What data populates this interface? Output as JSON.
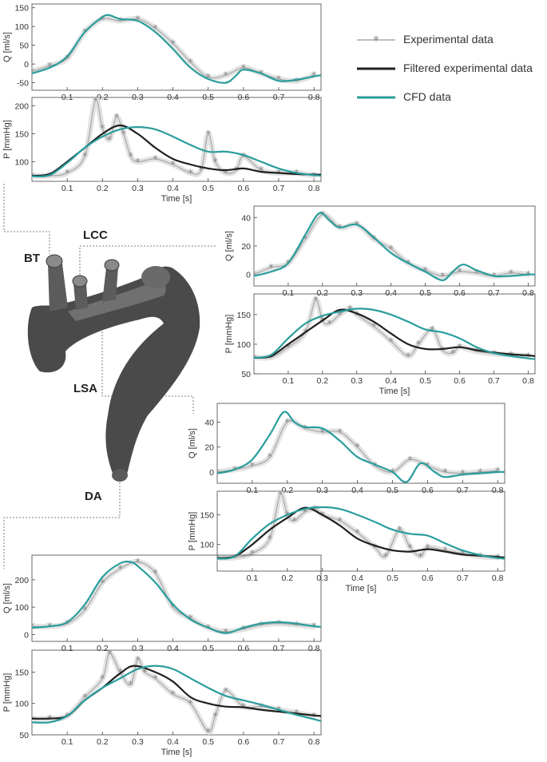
{
  "legend": {
    "experimental": "Experimental data",
    "filtered": "Filtered experimental data",
    "cfd": "CFD data"
  },
  "colors": {
    "experimental": "#a8a8a8",
    "experimental_band": "#e3e3e3",
    "filtered": "#1f1f1f",
    "cfd": "#2a9d9d",
    "axis": "#444444",
    "geometry": "#4a4a4a"
  },
  "vessels": {
    "bt": "BT",
    "lcc": "LCC",
    "lsa": "LSA",
    "da": "DA"
  },
  "chart_data": [
    {
      "id": "Q-ascending",
      "type": "line",
      "ylabel": "Q [ml/s]",
      "xlabel": "",
      "xlim": [
        0,
        0.82
      ],
      "ylim": [
        -70,
        160
      ],
      "xticks": [
        0.1,
        0.2,
        0.3,
        0.4,
        0.5,
        0.6,
        0.7,
        0.8
      ],
      "yticks": [
        -50,
        0,
        50,
        100,
        150
      ],
      "series": [
        {
          "kind": "experimental",
          "x": [
            0,
            0.05,
            0.1,
            0.15,
            0.2,
            0.25,
            0.3,
            0.35,
            0.4,
            0.45,
            0.5,
            0.55,
            0.6,
            0.65,
            0.7,
            0.75,
            0.8
          ],
          "y": [
            -20,
            -5,
            15,
            85,
            120,
            115,
            120,
            95,
            55,
            5,
            -35,
            -30,
            -10,
            -25,
            -40,
            -45,
            -30
          ]
        },
        {
          "kind": "cfd",
          "x": [
            0,
            0.05,
            0.1,
            0.15,
            0.2,
            0.22,
            0.25,
            0.3,
            0.35,
            0.4,
            0.45,
            0.5,
            0.55,
            0.58,
            0.6,
            0.65,
            0.7,
            0.75,
            0.8,
            0.82
          ],
          "y": [
            -25,
            -10,
            20,
            85,
            125,
            130,
            120,
            115,
            85,
            40,
            -10,
            -40,
            -50,
            -30,
            -15,
            -25,
            -45,
            -42,
            -33,
            -30
          ]
        }
      ]
    },
    {
      "id": "P-ascending",
      "type": "line",
      "ylabel": "P [mmHg]",
      "xlabel": "Time [s]",
      "xlim": [
        0,
        0.82
      ],
      "ylim": [
        65,
        215
      ],
      "xticks": [
        0.1,
        0.2,
        0.3,
        0.4,
        0.5,
        0.6,
        0.7,
        0.8
      ],
      "yticks": [
        100,
        150,
        200
      ],
      "series": [
        {
          "kind": "experimental",
          "x": [
            0,
            0.05,
            0.1,
            0.15,
            0.18,
            0.2,
            0.22,
            0.24,
            0.26,
            0.28,
            0.3,
            0.35,
            0.4,
            0.45,
            0.48,
            0.5,
            0.52,
            0.55,
            0.58,
            0.6,
            0.65,
            0.7,
            0.75,
            0.8
          ],
          "y": [
            75,
            75,
            80,
            110,
            210,
            160,
            140,
            180,
            150,
            110,
            100,
            105,
            95,
            80,
            85,
            150,
            100,
            80,
            85,
            110,
            85,
            80,
            80,
            75
          ]
        },
        {
          "kind": "filtered",
          "x": [
            0,
            0.05,
            0.1,
            0.15,
            0.2,
            0.25,
            0.3,
            0.35,
            0.4,
            0.45,
            0.5,
            0.55,
            0.6,
            0.65,
            0.7,
            0.75,
            0.8,
            0.82
          ],
          "y": [
            75,
            78,
            100,
            125,
            150,
            165,
            150,
            125,
            105,
            95,
            88,
            85,
            88,
            82,
            80,
            78,
            77,
            77
          ]
        },
        {
          "kind": "cfd",
          "x": [
            0,
            0.05,
            0.1,
            0.15,
            0.2,
            0.25,
            0.3,
            0.35,
            0.4,
            0.45,
            0.5,
            0.55,
            0.6,
            0.65,
            0.7,
            0.75,
            0.8,
            0.82
          ],
          "y": [
            74,
            76,
            98,
            125,
            145,
            158,
            162,
            158,
            145,
            130,
            118,
            118,
            112,
            100,
            88,
            80,
            76,
            75
          ]
        }
      ]
    },
    {
      "id": "Q-LCC",
      "type": "line",
      "ylabel": "Q [ml/s]",
      "xlabel": "",
      "xlim": [
        0,
        0.82
      ],
      "ylim": [
        -8,
        48
      ],
      "xticks": [
        0.1,
        0.2,
        0.3,
        0.4,
        0.5,
        0.6,
        0.7,
        0.8
      ],
      "yticks": [
        0,
        20,
        40
      ],
      "series": [
        {
          "kind": "experimental",
          "x": [
            0,
            0.05,
            0.1,
            0.15,
            0.2,
            0.25,
            0.3,
            0.35,
            0.4,
            0.45,
            0.5,
            0.55,
            0.6,
            0.65,
            0.7,
            0.75,
            0.8
          ],
          "y": [
            0,
            5,
            8,
            25,
            42,
            33,
            35,
            25,
            18,
            8,
            3,
            -1,
            2,
            1,
            -1,
            1,
            0
          ]
        },
        {
          "kind": "cfd",
          "x": [
            0,
            0.05,
            0.1,
            0.15,
            0.19,
            0.22,
            0.25,
            0.3,
            0.35,
            0.4,
            0.45,
            0.5,
            0.55,
            0.58,
            0.61,
            0.65,
            0.7,
            0.75,
            0.8,
            0.82
          ],
          "y": [
            -1,
            2,
            8,
            28,
            43,
            38,
            33,
            35,
            26,
            15,
            8,
            2,
            -4,
            2,
            7,
            3,
            -1,
            -1,
            0,
            0
          ]
        }
      ]
    },
    {
      "id": "P-LCC",
      "type": "line",
      "ylabel": "P [mmHg]",
      "xlabel": "Time [s]",
      "xlim": [
        0,
        0.82
      ],
      "ylim": [
        50,
        185
      ],
      "xticks": [
        0.1,
        0.2,
        0.3,
        0.4,
        0.5,
        0.6,
        0.7,
        0.8
      ],
      "yticks": [
        50,
        100,
        150
      ],
      "series": [
        {
          "kind": "experimental",
          "x": [
            0,
            0.05,
            0.1,
            0.15,
            0.18,
            0.2,
            0.22,
            0.25,
            0.28,
            0.3,
            0.35,
            0.4,
            0.45,
            0.48,
            0.52,
            0.55,
            0.58,
            0.6,
            0.65,
            0.7,
            0.75,
            0.8
          ],
          "y": [
            78,
            78,
            95,
            120,
            175,
            140,
            135,
            150,
            160,
            150,
            130,
            105,
            80,
            100,
            125,
            90,
            85,
            95,
            88,
            84,
            82,
            80
          ]
        },
        {
          "kind": "filtered",
          "x": [
            0,
            0.05,
            0.1,
            0.15,
            0.2,
            0.25,
            0.3,
            0.35,
            0.4,
            0.45,
            0.5,
            0.55,
            0.6,
            0.65,
            0.7,
            0.75,
            0.8,
            0.82
          ],
          "y": [
            77,
            80,
            100,
            120,
            140,
            158,
            152,
            138,
            118,
            100,
            92,
            92,
            95,
            90,
            86,
            83,
            81,
            80
          ]
        },
        {
          "kind": "cfd",
          "x": [
            0,
            0.05,
            0.1,
            0.15,
            0.2,
            0.25,
            0.3,
            0.35,
            0.4,
            0.45,
            0.5,
            0.55,
            0.6,
            0.65,
            0.7,
            0.75,
            0.8,
            0.82
          ],
          "y": [
            77,
            82,
            110,
            135,
            148,
            155,
            160,
            158,
            150,
            138,
            125,
            120,
            110,
            95,
            85,
            80,
            76,
            75
          ]
        }
      ]
    },
    {
      "id": "Q-LSA",
      "type": "line",
      "ylabel": "Q [ml/s]",
      "xlabel": "",
      "xlim": [
        0,
        0.82
      ],
      "ylim": [
        -9,
        55
      ],
      "xticks": [
        0.1,
        0.2,
        0.3,
        0.4,
        0.5,
        0.6,
        0.7,
        0.8
      ],
      "yticks": [
        0,
        20,
        40
      ],
      "series": [
        {
          "kind": "experimental",
          "x": [
            0,
            0.05,
            0.1,
            0.15,
            0.2,
            0.25,
            0.3,
            0.35,
            0.4,
            0.45,
            0.5,
            0.55,
            0.6,
            0.65,
            0.7,
            0.75,
            0.8
          ],
          "y": [
            0,
            2,
            5,
            12,
            40,
            35,
            32,
            32,
            20,
            5,
            0,
            10,
            5,
            0,
            -1,
            0,
            1
          ]
        },
        {
          "kind": "cfd",
          "x": [
            0,
            0.05,
            0.1,
            0.15,
            0.19,
            0.22,
            0.25,
            0.3,
            0.35,
            0.4,
            0.45,
            0.5,
            0.54,
            0.58,
            0.62,
            0.65,
            0.7,
            0.75,
            0.8,
            0.82
          ],
          "y": [
            -1,
            2,
            10,
            30,
            48,
            40,
            36,
            35,
            25,
            12,
            6,
            0,
            -8,
            7,
            0,
            -4,
            -2,
            -1,
            0,
            0
          ]
        }
      ]
    },
    {
      "id": "P-LSA",
      "type": "line",
      "ylabel": "P [mmHg]",
      "xlabel": "Time [s]",
      "xlim": [
        0,
        0.82
      ],
      "ylim": [
        55,
        190
      ],
      "xticks": [
        0.1,
        0.2,
        0.3,
        0.4,
        0.5,
        0.6,
        0.7,
        0.8
      ],
      "yticks": [
        100,
        150
      ],
      "series": [
        {
          "kind": "experimental",
          "x": [
            0,
            0.05,
            0.1,
            0.15,
            0.18,
            0.2,
            0.22,
            0.25,
            0.28,
            0.3,
            0.35,
            0.4,
            0.45,
            0.48,
            0.52,
            0.55,
            0.58,
            0.6,
            0.65,
            0.7,
            0.75,
            0.8
          ],
          "y": [
            77,
            78,
            85,
            110,
            185,
            150,
            140,
            155,
            160,
            150,
            140,
            120,
            95,
            80,
            125,
            95,
            80,
            95,
            90,
            85,
            80,
            78
          ]
        },
        {
          "kind": "filtered",
          "x": [
            0,
            0.05,
            0.1,
            0.15,
            0.2,
            0.25,
            0.3,
            0.35,
            0.4,
            0.45,
            0.5,
            0.55,
            0.6,
            0.65,
            0.7,
            0.75,
            0.8,
            0.82
          ],
          "y": [
            77,
            80,
            100,
            125,
            145,
            162,
            150,
            132,
            110,
            98,
            90,
            88,
            92,
            88,
            83,
            81,
            79,
            78
          ]
        },
        {
          "kind": "cfd",
          "x": [
            0,
            0.05,
            0.1,
            0.15,
            0.2,
            0.25,
            0.3,
            0.35,
            0.4,
            0.45,
            0.5,
            0.55,
            0.6,
            0.65,
            0.7,
            0.75,
            0.8,
            0.82
          ],
          "y": [
            76,
            80,
            110,
            135,
            150,
            160,
            163,
            160,
            150,
            138,
            125,
            118,
            115,
            102,
            90,
            82,
            77,
            76
          ]
        }
      ]
    },
    {
      "id": "Q-DA",
      "type": "line",
      "ylabel": "Q [ml/s]",
      "xlabel": "",
      "xlim": [
        0,
        0.82
      ],
      "ylim": [
        -25,
        290
      ],
      "xticks": [
        0.1,
        0.2,
        0.3,
        0.4,
        0.5,
        0.6,
        0.7,
        0.8
      ],
      "yticks": [
        0,
        100,
        200
      ],
      "series": [
        {
          "kind": "experimental",
          "x": [
            0,
            0.05,
            0.1,
            0.15,
            0.2,
            0.25,
            0.3,
            0.35,
            0.4,
            0.45,
            0.5,
            0.55,
            0.6,
            0.65,
            0.7,
            0.75,
            0.8
          ],
          "y": [
            30,
            30,
            40,
            90,
            190,
            240,
            265,
            225,
            100,
            60,
            25,
            10,
            20,
            35,
            40,
            35,
            30
          ]
        },
        {
          "kind": "cfd",
          "x": [
            0,
            0.05,
            0.1,
            0.15,
            0.2,
            0.25,
            0.28,
            0.3,
            0.35,
            0.4,
            0.45,
            0.5,
            0.55,
            0.6,
            0.65,
            0.7,
            0.75,
            0.8,
            0.82
          ],
          "y": [
            25,
            30,
            45,
            110,
            210,
            260,
            265,
            250,
            190,
            110,
            55,
            25,
            5,
            25,
            40,
            45,
            40,
            30,
            28
          ]
        }
      ]
    },
    {
      "id": "P-DA",
      "type": "line",
      "ylabel": "P [mmHg]",
      "xlabel": "Time [s]",
      "xlim": [
        0,
        0.82
      ],
      "ylim": [
        50,
        185
      ],
      "xticks": [
        0.1,
        0.2,
        0.3,
        0.4,
        0.5,
        0.6,
        0.7,
        0.8
      ],
      "yticks": [
        50,
        100,
        150
      ],
      "series": [
        {
          "kind": "experimental",
          "x": [
            0,
            0.05,
            0.1,
            0.15,
            0.2,
            0.22,
            0.25,
            0.28,
            0.3,
            0.32,
            0.35,
            0.4,
            0.45,
            0.5,
            0.52,
            0.55,
            0.6,
            0.65,
            0.7,
            0.75,
            0.8
          ],
          "y": [
            75,
            76,
            80,
            110,
            140,
            180,
            150,
            130,
            170,
            150,
            140,
            115,
            100,
            55,
            80,
            120,
            95,
            95,
            90,
            85,
            80
          ]
        },
        {
          "kind": "filtered",
          "x": [
            0,
            0.05,
            0.1,
            0.15,
            0.2,
            0.25,
            0.29,
            0.35,
            0.4,
            0.45,
            0.5,
            0.55,
            0.6,
            0.65,
            0.7,
            0.75,
            0.8,
            0.82
          ],
          "y": [
            76,
            76,
            80,
            105,
            125,
            148,
            160,
            150,
            135,
            110,
            100,
            95,
            94,
            90,
            87,
            84,
            81,
            80
          ]
        },
        {
          "kind": "cfd",
          "x": [
            0,
            0.05,
            0.1,
            0.15,
            0.2,
            0.25,
            0.3,
            0.35,
            0.4,
            0.45,
            0.5,
            0.55,
            0.6,
            0.65,
            0.7,
            0.75,
            0.8,
            0.82
          ],
          "y": [
            70,
            70,
            80,
            105,
            125,
            140,
            155,
            160,
            155,
            140,
            125,
            112,
            105,
            98,
            90,
            82,
            75,
            72
          ]
        }
      ]
    }
  ]
}
